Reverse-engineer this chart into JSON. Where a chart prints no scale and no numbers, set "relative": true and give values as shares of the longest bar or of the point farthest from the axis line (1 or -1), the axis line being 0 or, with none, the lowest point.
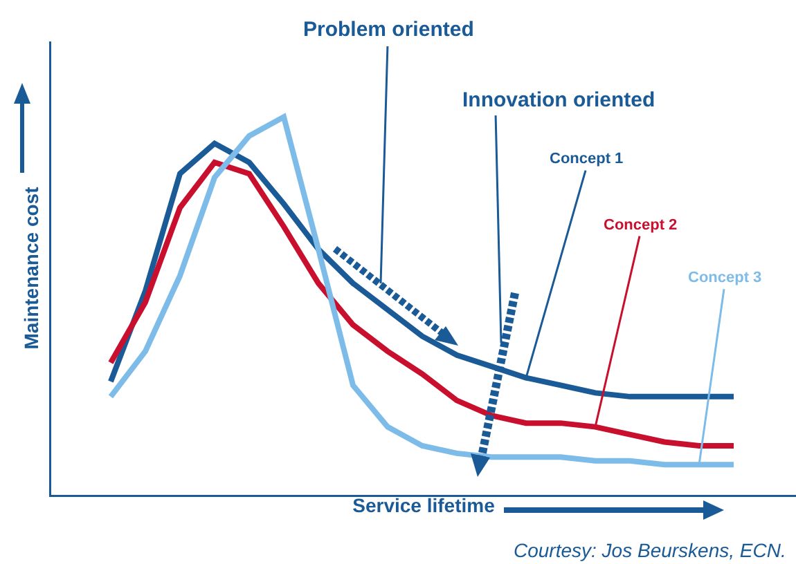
{
  "chart_data": {
    "type": "line",
    "relative": true,
    "xlabel": "Service lifetime",
    "ylabel": "Maintenance cost",
    "categories": [
      null,
      null,
      null,
      null,
      null,
      null,
      null,
      null,
      null,
      null,
      null,
      null,
      null,
      null,
      null,
      null,
      null,
      null,
      null
    ],
    "series": [
      {
        "name": "Concept 1",
        "color": "#1a5a96",
        "values": [
          0.3,
          0.54,
          0.85,
          0.93,
          0.88,
          0.77,
          0.65,
          0.56,
          0.49,
          0.42,
          0.37,
          0.34,
          0.31,
          0.29,
          0.27,
          0.26,
          0.26,
          0.26,
          0.26
        ]
      },
      {
        "name": "Concept 2",
        "color": "#c8102e",
        "values": [
          0.35,
          0.51,
          0.76,
          0.88,
          0.85,
          0.71,
          0.56,
          0.45,
          0.38,
          0.32,
          0.25,
          0.21,
          0.19,
          0.19,
          0.18,
          0.16,
          0.14,
          0.13,
          0.13
        ]
      },
      {
        "name": "Concept 3",
        "color": "#7dbbe8",
        "values": [
          0.26,
          0.38,
          0.58,
          0.84,
          0.95,
          1,
          0.65,
          0.29,
          0.18,
          0.13,
          0.11,
          0.1,
          0.1,
          0.1,
          0.09,
          0.09,
          0.08,
          0.08,
          0.08
        ]
      }
    ],
    "annotations": [
      "Problem oriented",
      "Innovation oriented",
      "Courtesy: Jos Beurskens, ECN."
    ],
    "legend": false,
    "grid": false,
    "marker": "none",
    "line_style": "solid"
  }
}
